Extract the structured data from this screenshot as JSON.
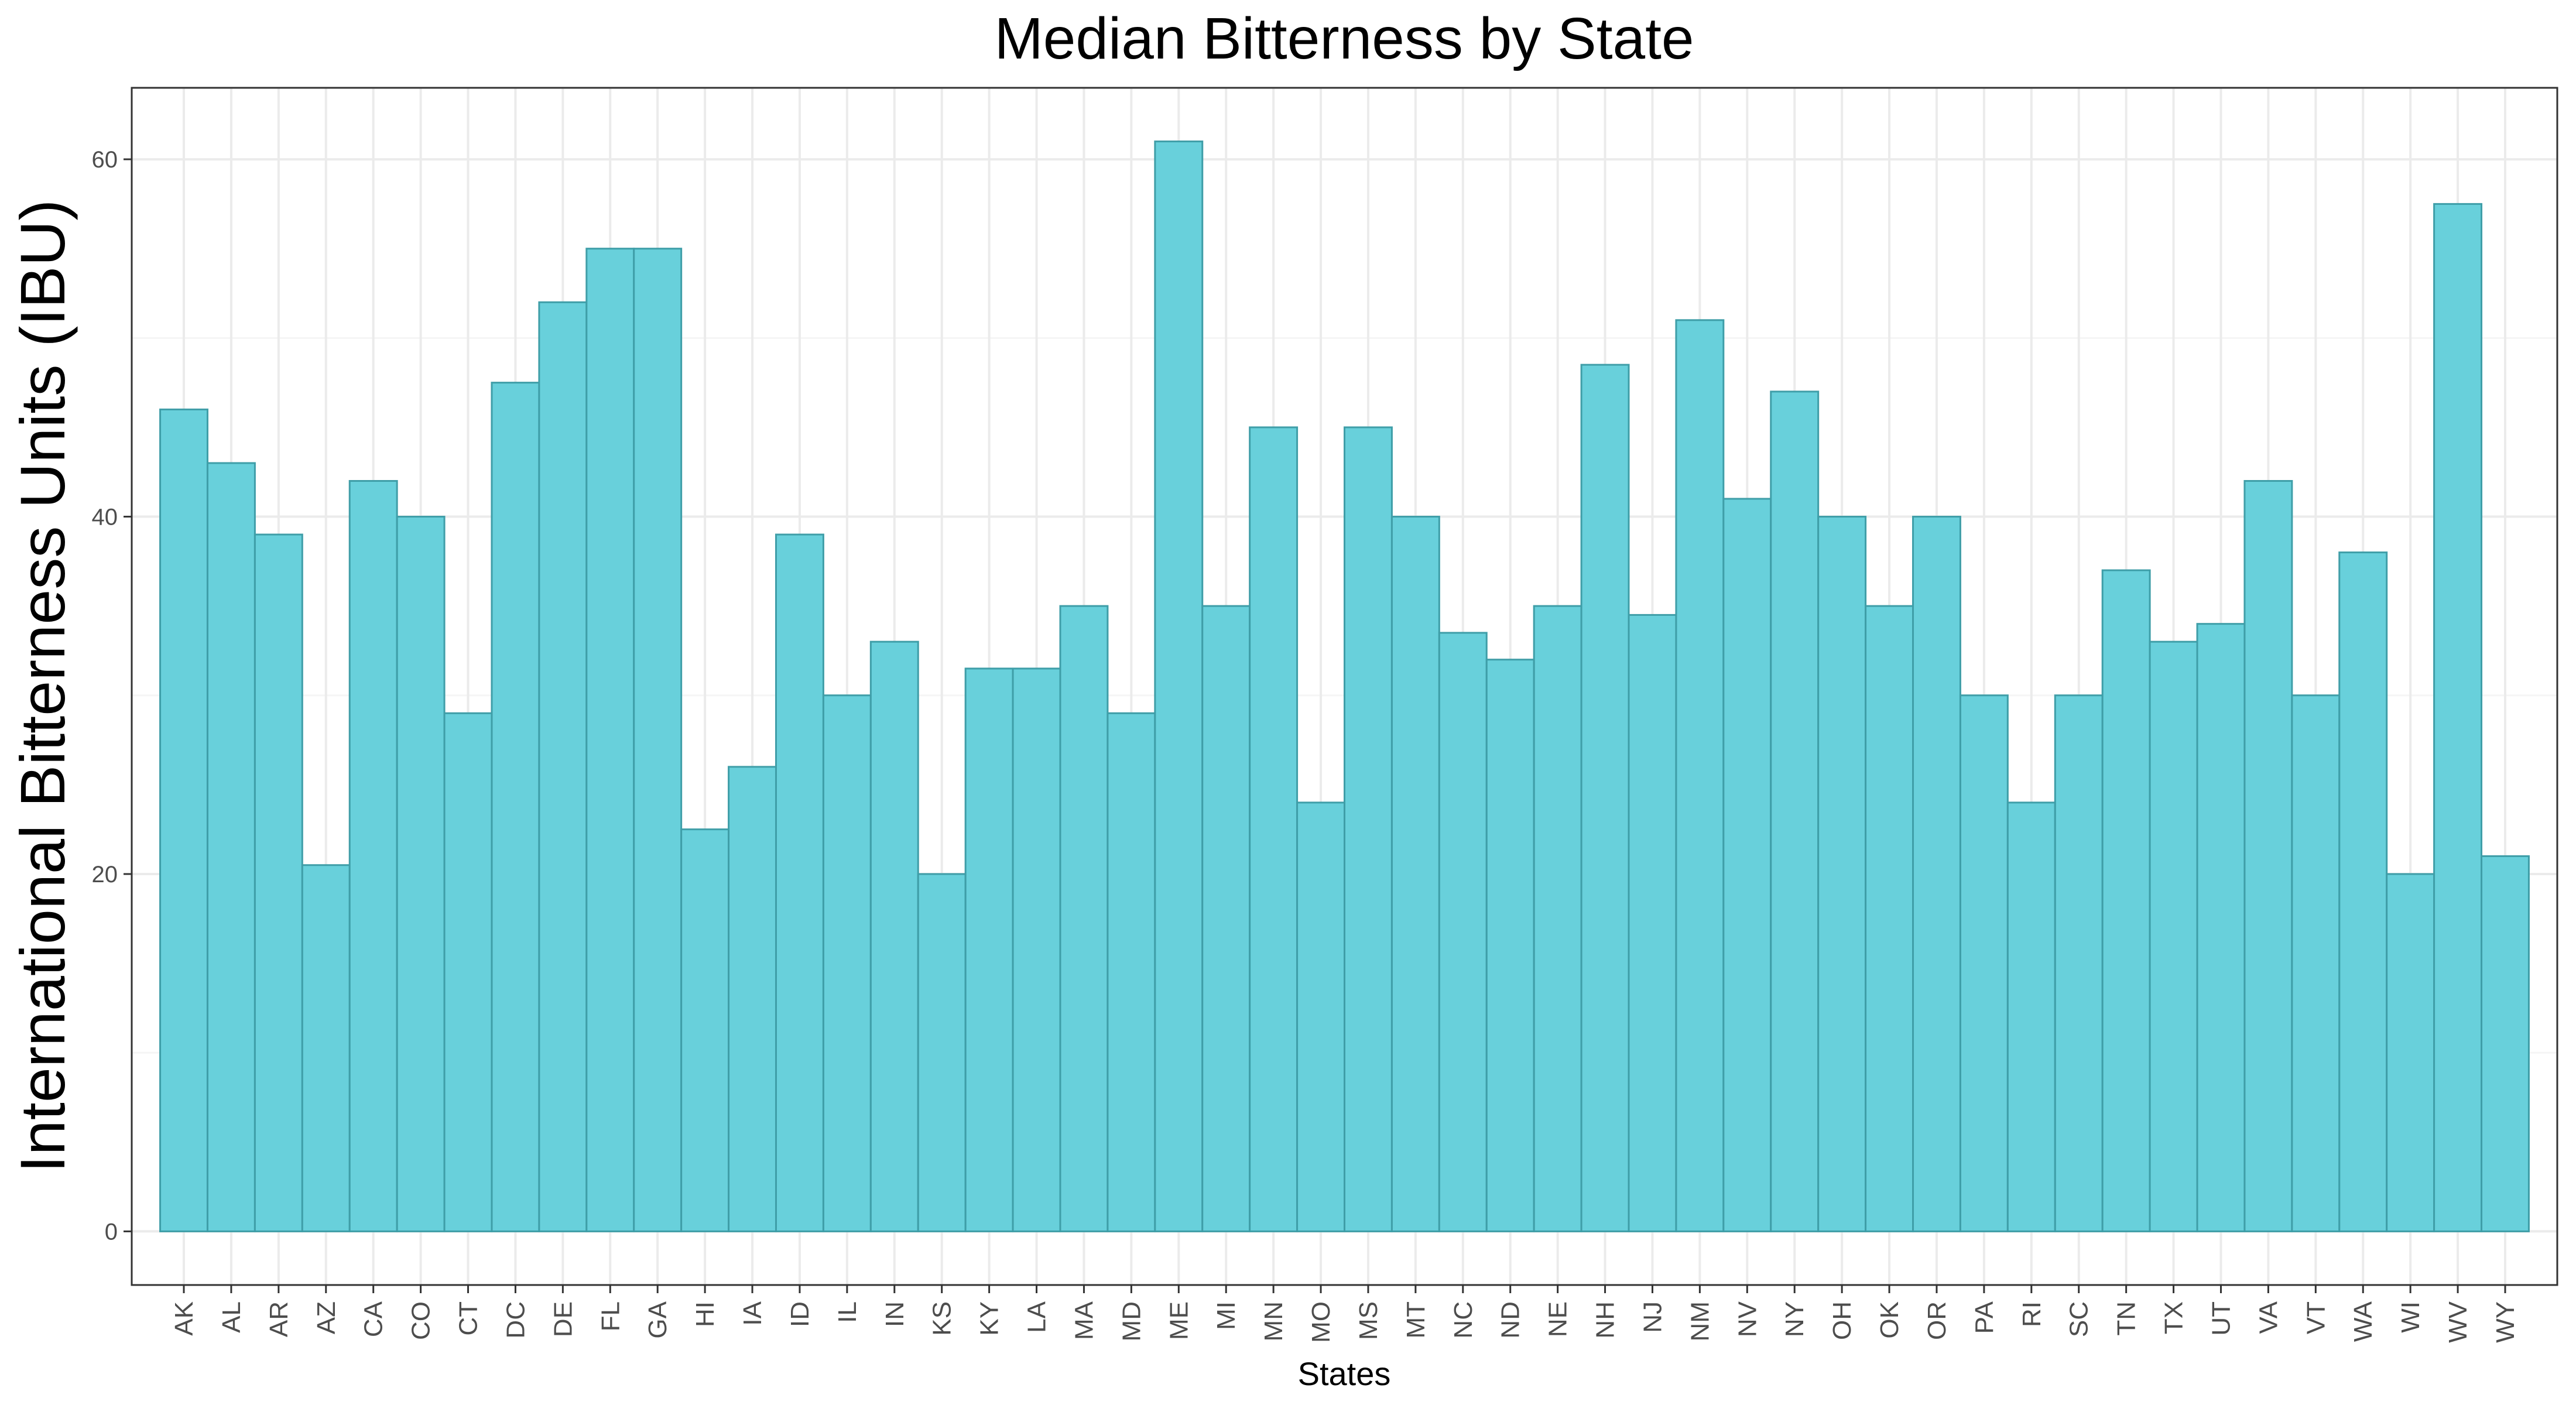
{
  "chart_data": {
    "type": "bar",
    "title": "Median Bitterness by State",
    "xlabel": "States",
    "ylabel": "International Bitterness Units (IBU)",
    "categories": [
      "AK",
      "AL",
      "AR",
      "AZ",
      "CA",
      "CO",
      "CT",
      "DC",
      "DE",
      "FL",
      "GA",
      "HI",
      "IA",
      "ID",
      "IL",
      "IN",
      "KS",
      "KY",
      "LA",
      "MA",
      "MD",
      "ME",
      "MI",
      "MN",
      "MO",
      "MS",
      "MT",
      "NC",
      "ND",
      "NE",
      "NH",
      "NJ",
      "NM",
      "NV",
      "NY",
      "OH",
      "OK",
      "OR",
      "PA",
      "RI",
      "SC",
      "TN",
      "TX",
      "UT",
      "VA",
      "VT",
      "WA",
      "WI",
      "WV",
      "WY"
    ],
    "values": [
      46,
      43,
      39,
      20.5,
      42,
      40,
      29,
      47.5,
      52,
      55,
      55,
      22.5,
      26,
      39,
      30,
      33,
      20,
      31.5,
      31.5,
      35,
      29,
      61,
      35,
      45,
      24,
      45,
      40,
      33.5,
      32,
      35,
      48.5,
      34.5,
      51,
      41,
      47,
      40,
      35,
      40,
      30,
      24,
      30,
      37,
      33,
      34,
      42,
      30,
      38,
      20,
      57.5,
      21
    ],
    "ylim": [
      -3,
      64
    ],
    "yticks": [
      0,
      20,
      40,
      60
    ],
    "grid": true,
    "legend": "none",
    "colors": {
      "bar_fill": "#68d0db",
      "bar_stroke": "#3f9ea8",
      "grid_major": "#ebebeb",
      "grid_minor": "#f5f5f5",
      "panel_border": "#333333"
    }
  }
}
